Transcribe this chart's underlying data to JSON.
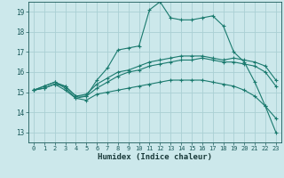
{
  "xlabel": "Humidex (Indice chaleur)",
  "ylabel": "",
  "xlim": [
    -0.5,
    23.5
  ],
  "ylim": [
    12.5,
    19.5
  ],
  "yticks": [
    13,
    14,
    15,
    16,
    17,
    18,
    19
  ],
  "xticks": [
    0,
    1,
    2,
    3,
    4,
    5,
    6,
    7,
    8,
    9,
    10,
    11,
    12,
    13,
    14,
    15,
    16,
    17,
    18,
    19,
    20,
    21,
    22,
    23
  ],
  "background_color": "#cce8eb",
  "grid_color": "#aad0d4",
  "line_color": "#1a7a6e",
  "lines": [
    {
      "x": [
        0,
        1,
        2,
        3,
        4,
        5,
        6,
        7,
        8,
        9,
        10,
        11,
        12,
        13,
        14,
        15,
        16,
        17,
        18,
        19,
        20,
        21,
        22,
        23
      ],
      "y": [
        15.1,
        15.2,
        15.4,
        15.3,
        14.8,
        14.8,
        15.6,
        16.2,
        17.1,
        17.2,
        17.3,
        19.1,
        19.5,
        18.7,
        18.6,
        18.6,
        18.7,
        18.8,
        18.3,
        17.0,
        16.5,
        15.5,
        14.3,
        13.0
      ]
    },
    {
      "x": [
        0,
        1,
        2,
        3,
        4,
        5,
        6,
        7,
        8,
        9,
        10,
        11,
        12,
        13,
        14,
        15,
        16,
        17,
        18,
        19,
        20,
        21,
        22,
        23
      ],
      "y": [
        15.1,
        15.3,
        15.5,
        15.3,
        14.8,
        14.9,
        15.4,
        15.7,
        16.0,
        16.1,
        16.3,
        16.5,
        16.6,
        16.7,
        16.8,
        16.8,
        16.8,
        16.7,
        16.6,
        16.7,
        16.6,
        16.5,
        16.3,
        15.6
      ]
    },
    {
      "x": [
        0,
        1,
        2,
        3,
        4,
        5,
        6,
        7,
        8,
        9,
        10,
        11,
        12,
        13,
        14,
        15,
        16,
        17,
        18,
        19,
        20,
        21,
        22,
        23
      ],
      "y": [
        15.1,
        15.3,
        15.5,
        15.2,
        14.7,
        14.8,
        15.2,
        15.5,
        15.8,
        16.0,
        16.1,
        16.3,
        16.4,
        16.5,
        16.6,
        16.6,
        16.7,
        16.6,
        16.5,
        16.5,
        16.4,
        16.3,
        16.0,
        15.3
      ]
    },
    {
      "x": [
        0,
        1,
        2,
        3,
        4,
        5,
        6,
        7,
        8,
        9,
        10,
        11,
        12,
        13,
        14,
        15,
        16,
        17,
        18,
        19,
        20,
        21,
        22,
        23
      ],
      "y": [
        15.1,
        15.2,
        15.4,
        15.1,
        14.7,
        14.6,
        14.9,
        15.0,
        15.1,
        15.2,
        15.3,
        15.4,
        15.5,
        15.6,
        15.6,
        15.6,
        15.6,
        15.5,
        15.4,
        15.3,
        15.1,
        14.8,
        14.3,
        13.7
      ]
    }
  ]
}
